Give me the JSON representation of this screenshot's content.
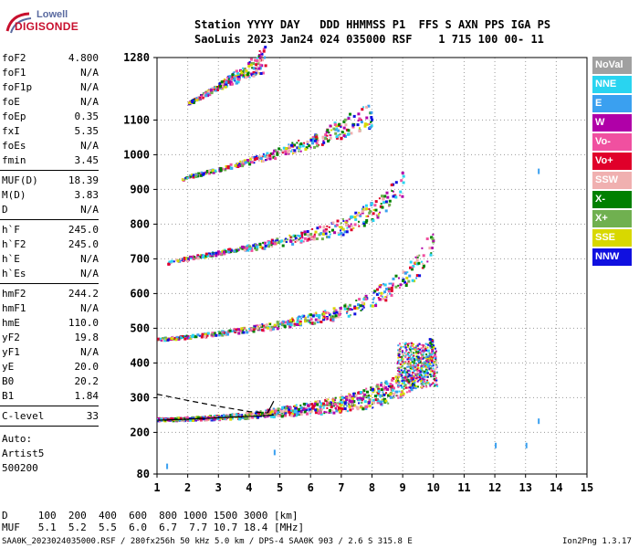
{
  "logo": {
    "top": "Lowell",
    "bottom": "DIGISONDE"
  },
  "header": {
    "line1": "Station YYYY DAY   DDD HHMMSS P1  FFS S AXN PPS IGA PS",
    "line2": "SaoLuis 2023 Jan24 024 035000 RSF    1 715 100 00- 11"
  },
  "scaled_groups": [
    [
      {
        "k": "foF2",
        "v": "4.800"
      },
      {
        "k": "foF1",
        "v": "N/A"
      },
      {
        "k": "foF1p",
        "v": "N/A"
      },
      {
        "k": "foE",
        "v": "N/A"
      },
      {
        "k": "foEp",
        "v": "0.35"
      },
      {
        "k": "fxI",
        "v": "5.35"
      },
      {
        "k": "foEs",
        "v": "N/A"
      },
      {
        "k": "fmin",
        "v": "3.45"
      }
    ],
    [
      {
        "k": "MUF(D)",
        "v": "18.39"
      },
      {
        "k": "M(D)",
        "v": "3.83"
      },
      {
        "k": "D",
        "v": "N/A"
      }
    ],
    [
      {
        "k": "h`F",
        "v": "245.0"
      },
      {
        "k": "h`F2",
        "v": "245.0"
      },
      {
        "k": "h`E",
        "v": "N/A"
      },
      {
        "k": "h`Es",
        "v": "N/A"
      }
    ],
    [
      {
        "k": "hmF2",
        "v": "244.2"
      },
      {
        "k": "hmF1",
        "v": "N/A"
      },
      {
        "k": "hmE",
        "v": "110.0"
      },
      {
        "k": "yF2",
        "v": "19.8"
      },
      {
        "k": "yF1",
        "v": "N/A"
      },
      {
        "k": "yE",
        "v": "20.0"
      },
      {
        "k": "B0",
        "v": "20.2"
      },
      {
        "k": "B1",
        "v": "1.84"
      }
    ],
    [
      {
        "k": "C-level",
        "v": "33"
      }
    ]
  ],
  "autoscale": {
    "line1": "Auto:",
    "line2": "Artist5",
    "line3": "500200"
  },
  "legend": [
    {
      "label": "NoVal",
      "color": "#a0a0a0"
    },
    {
      "label": "NNE",
      "color": "#29d4f0"
    },
    {
      "label": "E",
      "color": "#3aa0f0"
    },
    {
      "label": "W",
      "color": "#b000a8"
    },
    {
      "label": "Vo-",
      "color": "#f050a0"
    },
    {
      "label": "Vo+",
      "color": "#e0002a"
    },
    {
      "label": "SSW",
      "color": "#f0b0b0"
    },
    {
      "label": "X-",
      "color": "#008000"
    },
    {
      "label": "X+",
      "color": "#70b050"
    },
    {
      "label": "SSE",
      "color": "#d8d800"
    },
    {
      "label": "NNW",
      "color": "#1010e0"
    }
  ],
  "footer": {
    "d_line": "D     100  200  400  600  800 1000 1500 3000 [km]",
    "muf_line": "MUF   5.1  5.2  5.5  6.0  6.7  7.7 10.7 18.4 [MHz]",
    "file_line": "SAA0K_2023024035000.RSF / 280fx256h 50 kHz 5.0 km / DPS-4 SAA0K 903 / 2.6 S 315.8 E",
    "version": "Ion2Png 1.3.17"
  },
  "chart_data": {
    "type": "scatter",
    "xlim": [
      1,
      15
    ],
    "ylim": [
      80,
      1280
    ],
    "x_ticks": [
      1,
      2,
      3,
      4,
      5,
      6,
      7,
      8,
      9,
      10,
      11,
      12,
      13,
      14,
      15
    ],
    "y_ticks": [
      80,
      200,
      300,
      400,
      500,
      600,
      700,
      800,
      900,
      1000,
      1100,
      1280
    ],
    "grid": true,
    "traces": [
      {
        "name": "F2 trace O",
        "points": [
          [
            1,
            240
          ],
          [
            2,
            242
          ],
          [
            3,
            246
          ],
          [
            4,
            252
          ],
          [
            5,
            262
          ],
          [
            6,
            272
          ],
          [
            7,
            285
          ],
          [
            8,
            305
          ],
          [
            8.5,
            320
          ],
          [
            9,
            345
          ],
          [
            9.5,
            385
          ],
          [
            10,
            450
          ]
        ]
      },
      {
        "name": "2F2 echo",
        "points": [
          [
            1,
            470
          ],
          [
            2,
            478
          ],
          [
            3,
            488
          ],
          [
            4,
            500
          ],
          [
            5,
            514
          ],
          [
            6,
            530
          ],
          [
            7,
            550
          ],
          [
            8,
            590
          ],
          [
            9,
            640
          ],
          [
            9.5,
            690
          ],
          [
            10,
            760
          ]
        ]
      },
      {
        "name": "3F2 echo",
        "points": [
          [
            1.3,
            690
          ],
          [
            2,
            705
          ],
          [
            3,
            720
          ],
          [
            4,
            735
          ],
          [
            5,
            752
          ],
          [
            6,
            772
          ],
          [
            7,
            795
          ],
          [
            8,
            840
          ],
          [
            8.5,
            880
          ],
          [
            9,
            920
          ]
        ]
      },
      {
        "name": "4F2 echo",
        "points": [
          [
            1.8,
            930
          ],
          [
            2,
            940
          ],
          [
            3,
            960
          ],
          [
            4,
            985
          ],
          [
            5,
            1010
          ],
          [
            6,
            1040
          ],
          [
            7,
            1080
          ],
          [
            8,
            1120
          ]
        ]
      },
      {
        "name": "5F2 echo",
        "points": [
          [
            2,
            1150
          ],
          [
            3,
            1200
          ],
          [
            4,
            1250
          ],
          [
            4.5,
            1280
          ]
        ]
      }
    ],
    "profile": {
      "dashed": [
        [
          1,
          310
        ],
        [
          2,
          292
        ],
        [
          3,
          275
        ],
        [
          4,
          260
        ],
        [
          4.6,
          256
        ]
      ],
      "solid": [
        [
          1,
          235
        ],
        [
          2,
          238
        ],
        [
          3,
          242
        ],
        [
          4,
          246
        ],
        [
          4.8,
          250
        ]
      ],
      "cusp": [
        [
          4.6,
          256
        ],
        [
          4.8,
          290
        ]
      ]
    }
  }
}
